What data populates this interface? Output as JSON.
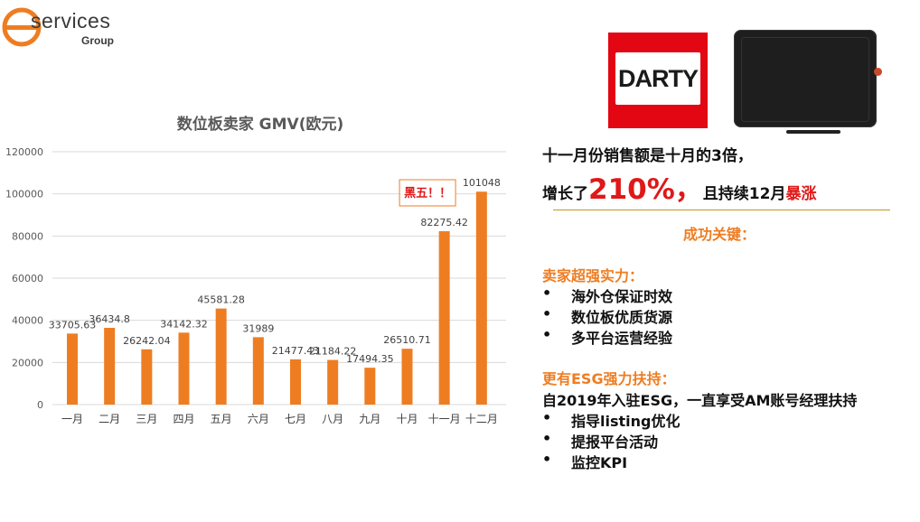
{
  "logo": {
    "name": "services",
    "sub": "Group"
  },
  "chart_data": {
    "type": "bar",
    "title": "数位板卖家 GMV(欧元)",
    "categories": [
      "一月",
      "二月",
      "三月",
      "四月",
      "五月",
      "六月",
      "七月",
      "八月",
      "九月",
      "十月",
      "十一月",
      "十二月"
    ],
    "values": [
      33705.63,
      36434.8,
      26242.04,
      34142.32,
      45581.28,
      31989,
      21477.43,
      21184.22,
      17494.35,
      26510.71,
      82275.42,
      101048
    ],
    "labels": [
      "33705.63",
      "36434.8",
      "26242.04",
      "34142.32",
      "45581.28",
      "31989",
      "21477.43",
      "21184.22",
      "17494.35",
      "26510.71",
      "82275.42",
      "101048"
    ],
    "ylim": [
      0,
      120000
    ],
    "yticks": [
      0,
      20000,
      40000,
      60000,
      80000,
      100000,
      120000
    ],
    "grid": true,
    "color": "#ee7d22",
    "annotation": "黑五！！"
  },
  "images": {
    "darty_logo": "DARTY",
    "tablet": "tablet-image"
  },
  "right": {
    "line1": "十一月份销售额是十月的3倍，",
    "line2_pre": "增长了",
    "line2_big": "210%，",
    "line2_mid": "且持续12月",
    "line2_red": "暴涨",
    "key": "成功关键：",
    "sec1": "卖家超强实力：",
    "sec1_items": [
      "海外仓保证时效",
      "数位板优质货源",
      "多平台运营经验"
    ],
    "sec2": "更有ESG强力扶持：",
    "sec2_line": "自2019年入驻ESG，一直享受AM账号经理扶持",
    "sec2_items": [
      "指导listing优化",
      "提报平台活动",
      "监控KPI"
    ],
    "bullet": "•"
  },
  "colors": {
    "accent": "#ee7d22",
    "red": "#e01818",
    "darty": "#e30613"
  }
}
